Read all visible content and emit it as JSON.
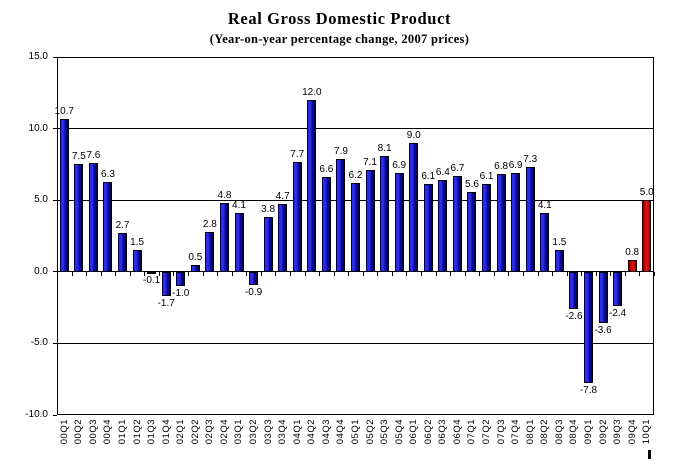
{
  "chart_data": {
    "type": "bar",
    "title": "Real Gross Domestic Product",
    "subtitle": "(Year-on-year percentage change, 2007 prices)",
    "categories": [
      "00Q1",
      "00Q2",
      "00Q3",
      "00Q4",
      "01Q1",
      "01Q2",
      "01Q3",
      "01Q4",
      "02Q1",
      "02Q2",
      "02Q3",
      "02Q4",
      "03Q1",
      "03Q2",
      "03Q3",
      "03Q4",
      "04Q1",
      "04Q2",
      "04Q3",
      "04Q4",
      "05Q1",
      "05Q2",
      "05Q3",
      "05Q4",
      "06Q1",
      "06Q2",
      "06Q3",
      "06Q4",
      "07Q1",
      "07Q2",
      "07Q3",
      "07Q4",
      "08Q1",
      "08Q2",
      "08Q3",
      "08Q4",
      "09Q1",
      "09Q2",
      "09Q3",
      "09Q4",
      "10Q1"
    ],
    "values": [
      10.7,
      7.5,
      7.6,
      6.3,
      2.7,
      1.5,
      -0.1,
      -1.7,
      -1.0,
      0.5,
      2.8,
      4.8,
      4.1,
      -0.9,
      3.8,
      4.7,
      7.7,
      12.0,
      6.6,
      7.9,
      6.2,
      7.1,
      8.1,
      6.9,
      9.0,
      6.1,
      6.4,
      6.7,
      5.6,
      6.1,
      6.8,
      6.9,
      7.3,
      4.1,
      1.5,
      -2.6,
      -7.8,
      -3.6,
      -2.4,
      0.8,
      5.0
    ],
    "value_labels_visible": true,
    "value_label_decimals": 1,
    "ylim": [
      -10,
      15
    ],
    "yticks": [
      15,
      10,
      5,
      0,
      -5,
      -10
    ],
    "ytick_labels": [
      "15.0",
      "10.0",
      "5.0",
      "0.0",
      "-5.0",
      "-10.0"
    ],
    "gridline_values": [
      10,
      5,
      0,
      -5
    ],
    "grid": true,
    "legend_position": "none",
    "colors": {
      "bar_default": "#0000CC",
      "bar_highlight": "#CC0000",
      "axis": "#000000",
      "text": "#000000"
    },
    "highlight_indices": [
      39,
      40
    ]
  }
}
